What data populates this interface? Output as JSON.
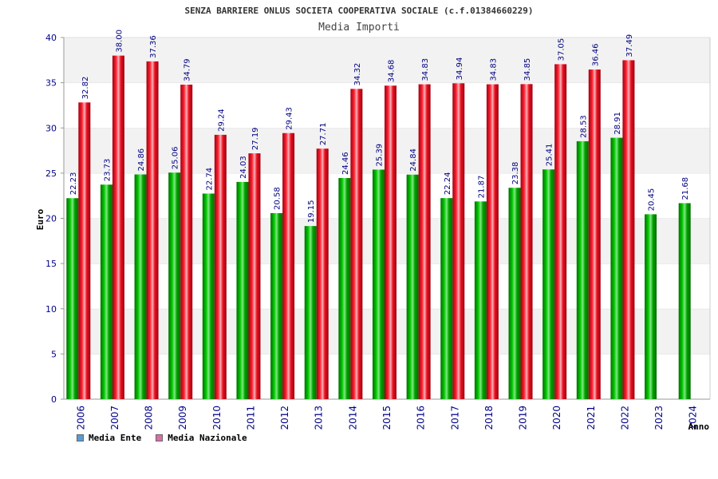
{
  "chart_data": {
    "type": "bar",
    "title": "SENZA BARRIERE ONLUS SOCIETA COOPERATIVA SOCIALE (c.f.01384660229)",
    "subtitle": "Media Importi",
    "ylabel": "Euro",
    "xlabel": "Anno",
    "ylim": [
      0,
      40
    ],
    "yticks": [
      0,
      5,
      10,
      15,
      20,
      25,
      30,
      35,
      40
    ],
    "grid": true,
    "legend_position": "bottom-left",
    "categories": [
      "2006",
      "2007",
      "2008",
      "2009",
      "2010",
      "2011",
      "2012",
      "2013",
      "2014",
      "2015",
      "2016",
      "2017",
      "2018",
      "2019",
      "2020",
      "2021",
      "2022",
      "2023",
      "2024"
    ],
    "series": [
      {
        "name": "Media Ente",
        "color": "#00a000",
        "legend_color": "#5a9bd4",
        "values": [
          22.23,
          23.73,
          24.86,
          25.06,
          22.74,
          24.03,
          20.58,
          19.15,
          24.46,
          25.39,
          24.84,
          22.24,
          21.87,
          23.38,
          25.41,
          28.53,
          28.91,
          20.45,
          21.68
        ],
        "labels": [
          "22.23",
          "23.73",
          "24.86",
          "25.06",
          "22.74",
          "24.03",
          "20.58",
          "19.15",
          "24.46",
          "25.39",
          "24.84",
          "22.24",
          "21.87",
          "23.38",
          "25.41",
          "28.53",
          "28.91",
          "20.45",
          "21.68"
        ]
      },
      {
        "name": "Media Nazionale",
        "color": "#e8101e",
        "legend_color": "#d96ea8",
        "values": [
          32.82,
          38.0,
          37.36,
          34.79,
          29.24,
          27.19,
          29.43,
          27.71,
          34.32,
          34.68,
          34.83,
          34.94,
          34.83,
          34.85,
          37.05,
          36.46,
          37.49,
          null,
          null
        ],
        "labels": [
          "32.82",
          "38.00",
          "37.36",
          "34.79",
          "29.24",
          "27.19",
          "29.43",
          "27.71",
          "34.32",
          "34.68",
          "34.83",
          "34.94",
          "34.83",
          "34.85",
          "37.05",
          "36.46",
          "37.49",
          null,
          null
        ]
      }
    ]
  }
}
